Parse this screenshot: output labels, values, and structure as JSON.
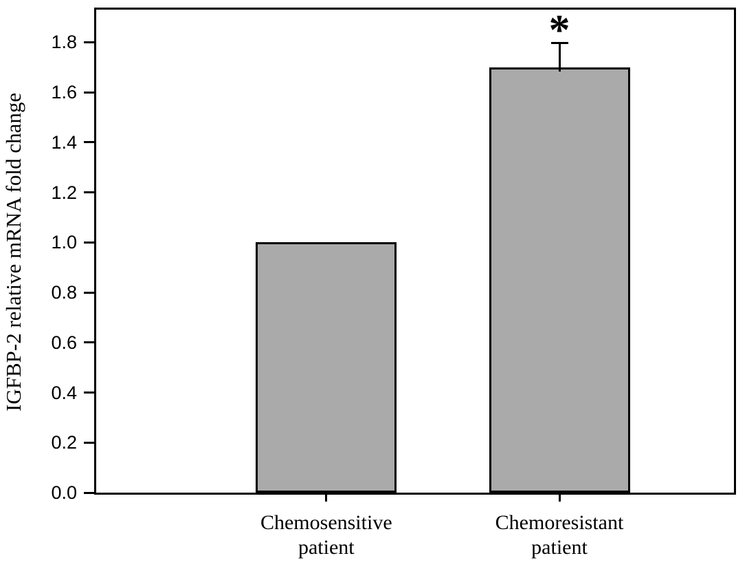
{
  "chart_data": {
    "type": "bar",
    "title": "",
    "xlabel": "",
    "ylabel": "IGFBP-2 relative mRNA fold change",
    "categories": [
      "Chemosensitive patient",
      "Chemoresistant patient"
    ],
    "category_lines": [
      [
        "Chemosensitive",
        "patient"
      ],
      [
        "Chemoresistant",
        "patient"
      ]
    ],
    "values": [
      1.0,
      1.7
    ],
    "errors_plus": [
      0,
      0.1
    ],
    "significance": [
      "",
      "*"
    ],
    "ytick_labels": [
      "0.0",
      "0.2",
      "0.4",
      "0.6",
      "0.8",
      "1.0",
      "1.2",
      "1.4",
      "1.6",
      "1.8"
    ],
    "ylim": [
      0,
      1.93
    ],
    "grid": false,
    "legend": false,
    "colors": {
      "bar_fill": "#aaaaaa",
      "bar_border": "#000000",
      "axis": "#000000",
      "text": "#000000",
      "background": "#ffffff"
    }
  }
}
